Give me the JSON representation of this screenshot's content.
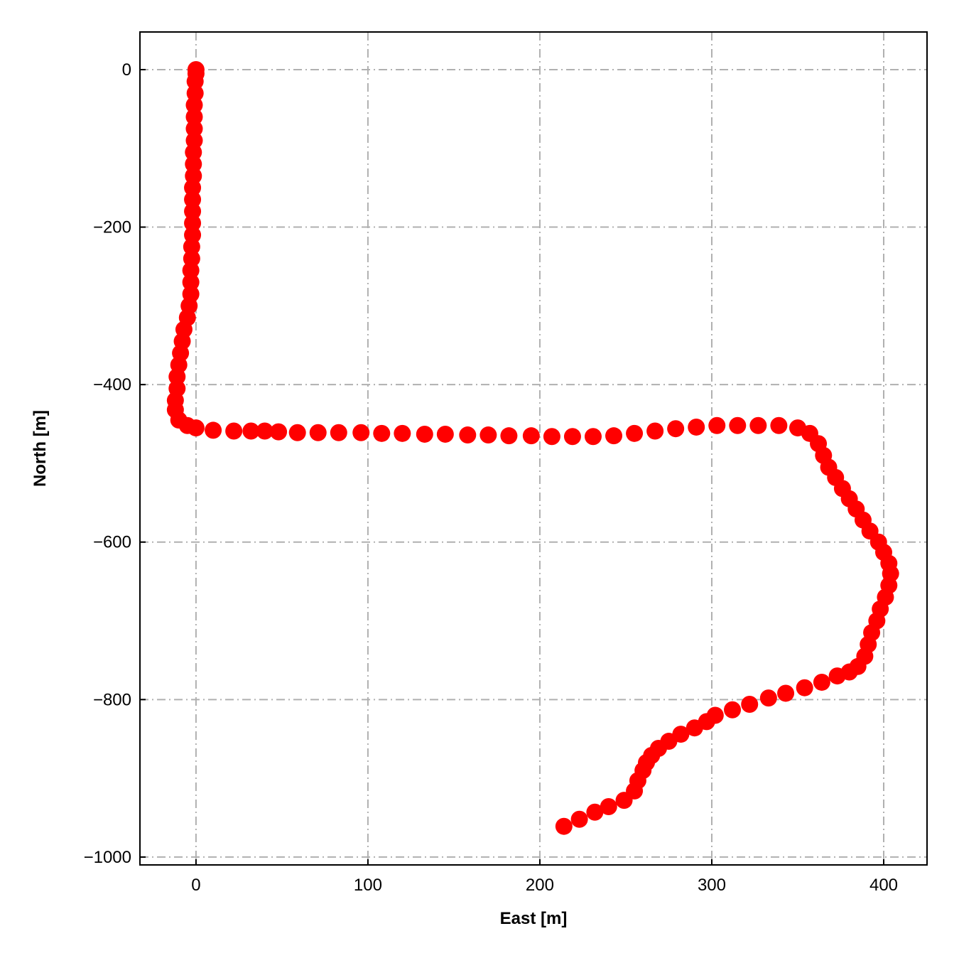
{
  "chart_data": {
    "type": "scatter",
    "xlabel": "East [m]",
    "ylabel": "North [m]",
    "color": "#ff0000",
    "grid": true,
    "xlim": [
      -32.6,
      425.2
    ],
    "ylim": [
      -1010,
      47.8
    ],
    "xticks": [
      0,
      100,
      200,
      300,
      400
    ],
    "yticks": [
      {
        "value": 0,
        "label": "0"
      },
      {
        "value": -200,
        "label": "−200"
      },
      {
        "value": -400,
        "label": "−400"
      },
      {
        "value": -600,
        "label": "−600"
      },
      {
        "value": -800,
        "label": "−800"
      },
      {
        "value": -1000,
        "label": "−1000"
      }
    ],
    "x": [
      0,
      0,
      -0.5,
      -0.5,
      -1,
      -1,
      -1,
      -1,
      -1.5,
      -1.5,
      -1.5,
      -2,
      -2,
      -2,
      -2,
      -2,
      -2.5,
      -2.5,
      -3,
      -3,
      -3,
      -4,
      -5,
      -7,
      -8,
      -9,
      -10,
      -11,
      -11,
      -12,
      -12,
      -10,
      -5,
      0,
      10,
      22,
      32,
      40,
      48,
      59,
      71,
      83,
      96,
      108,
      120,
      133,
      145,
      158,
      170,
      182,
      195,
      207,
      219,
      231,
      243,
      255,
      267,
      279,
      291,
      303,
      315,
      327,
      339,
      350,
      357,
      362,
      365,
      368,
      372,
      376,
      380,
      384,
      388,
      392,
      397,
      400,
      403,
      404,
      403,
      401,
      398,
      396,
      393,
      391,
      389,
      385,
      380,
      373,
      364,
      354,
      343,
      333,
      322,
      312,
      302,
      297,
      290,
      282,
      275,
      269,
      265,
      262,
      260,
      257,
      255,
      249,
      240,
      232,
      223,
      214
    ],
    "values": [
      0,
      -5,
      -15,
      -30,
      -45,
      -60,
      -75,
      -90,
      -105,
      -120,
      -135,
      -150,
      -165,
      -180,
      -195,
      -210,
      -225,
      -240,
      -255,
      -270,
      -285,
      -300,
      -315,
      -330,
      -345,
      -360,
      -375,
      -390,
      -405,
      -420,
      -432,
      -445,
      -452,
      -455,
      -458,
      -459,
      -459,
      -459,
      -460,
      -461,
      -461,
      -461,
      -461,
      -462,
      -462,
      -463,
      -463,
      -464,
      -464,
      -465,
      -465,
      -466,
      -466,
      -466,
      -465,
      -462,
      -459,
      -456,
      -454,
      -452,
      -452,
      -452,
      -452,
      -455,
      -462,
      -475,
      -490,
      -505,
      -518,
      -532,
      -545,
      -558,
      -572,
      -586,
      -600,
      -613,
      -627,
      -640,
      -655,
      -670,
      -685,
      -700,
      -715,
      -730,
      -745,
      -758,
      -765,
      -770,
      -778,
      -785,
      -792,
      -798,
      -806,
      -813,
      -820,
      -828,
      -836,
      -844,
      -853,
      -862,
      -871,
      -880,
      -890,
      -903,
      -916,
      -928,
      -936,
      -943,
      -952,
      -961
    ]
  }
}
